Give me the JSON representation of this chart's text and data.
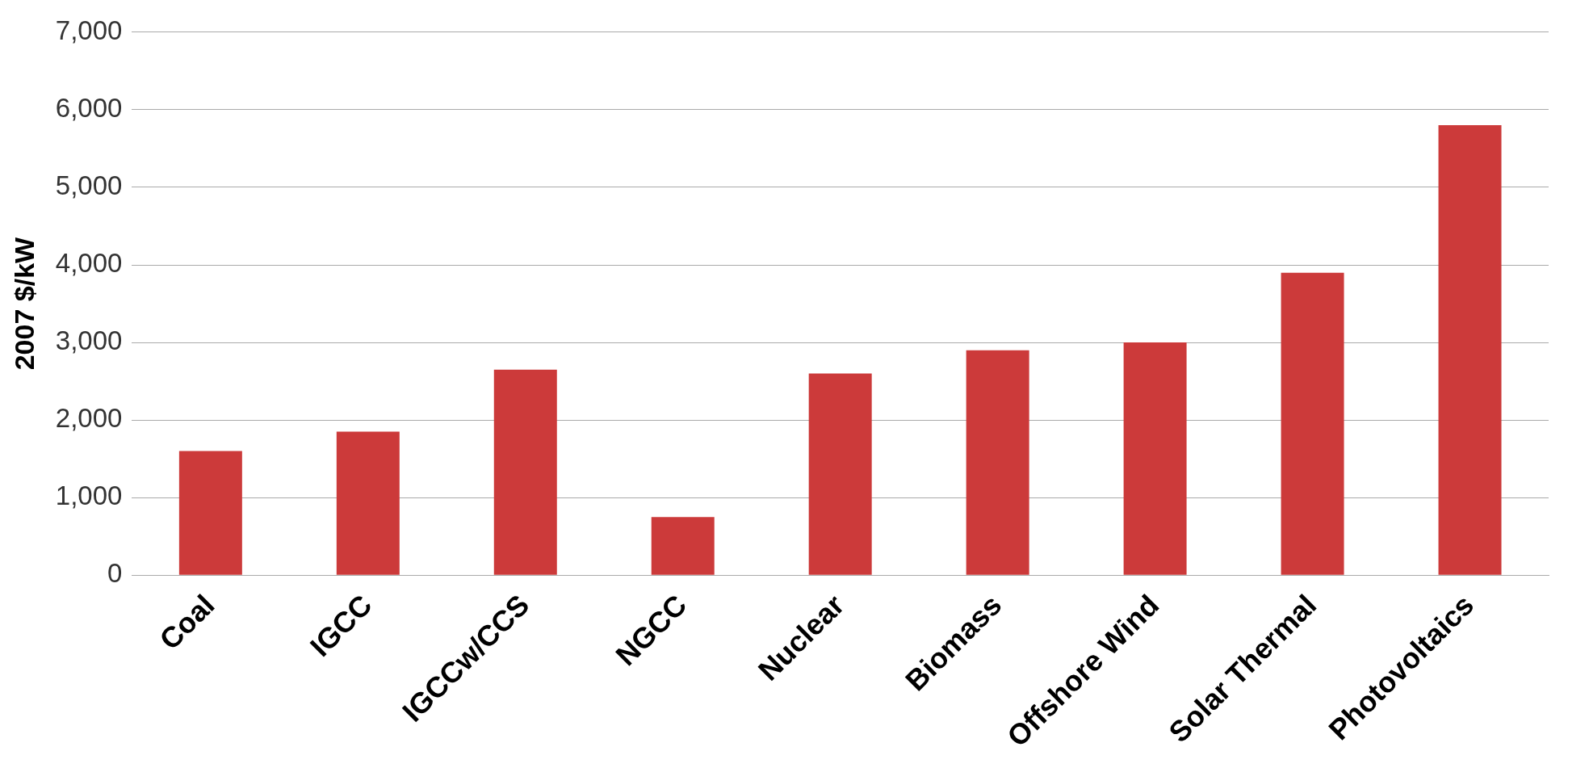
{
  "chart_data": {
    "type": "bar",
    "ylabel": "2007 $/kW",
    "categories": [
      "Coal",
      "IGCC",
      "IGCCw/CCS",
      "NGCC",
      "Nuclear",
      "Biomass",
      "Offshore Wind",
      "Solar Thermal",
      "Photovoltaics"
    ],
    "values": [
      1600,
      1850,
      2650,
      750,
      2600,
      2900,
      3000,
      3900,
      5800
    ],
    "color": "#cc3a3a",
    "ylim": [
      0,
      7000
    ],
    "yticks": [
      0,
      {
        "value": 1000,
        "label": "1,000"
      },
      {
        "value": 2000,
        "label": "2,000"
      },
      {
        "value": 3000,
        "label": "3,000"
      },
      {
        "value": 4000,
        "label": "4,000"
      },
      {
        "value": 5000,
        "label": "5,000"
      },
      {
        "value": 6000,
        "label": "6,000"
      },
      {
        "value": 7000,
        "label": "7,000"
      }
    ],
    "grid": "y",
    "legend": false
  }
}
